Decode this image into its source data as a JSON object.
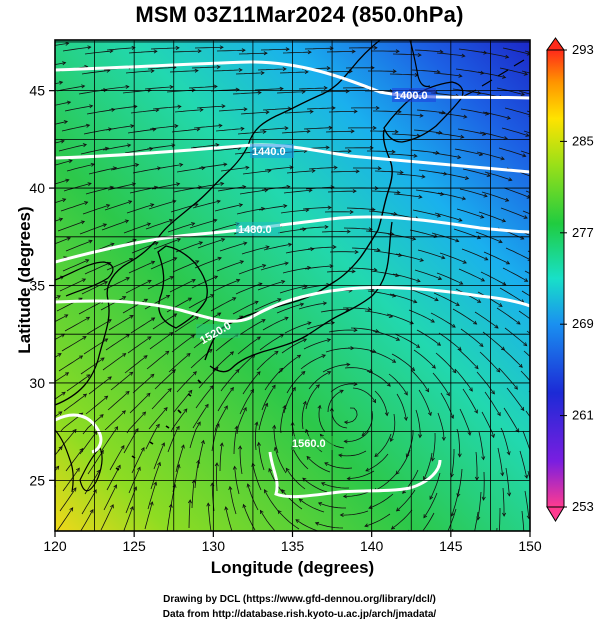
{
  "title": "MSM 03Z11Mar2024 (850.0hPa)",
  "axes": {
    "xlabel": "Longitude (degrees)",
    "ylabel": "Latitude  (degrees)",
    "x_ticks": [
      "120",
      "125",
      "130",
      "135",
      "140",
      "145",
      "150"
    ],
    "y_ticks": [
      "25",
      "30",
      "35",
      "40",
      "45"
    ],
    "xlim": [
      120,
      150
    ],
    "ylim": [
      22.4,
      47.6
    ]
  },
  "colorbar": {
    "ticks": [
      "293",
      "285",
      "277",
      "269",
      "261",
      "253"
    ],
    "range": [
      253,
      293
    ],
    "colors": [
      "#ff3b90",
      "#7a1ee0",
      "#1c2ad6",
      "#1a90f0",
      "#18e0c8",
      "#20cc40",
      "#9be018",
      "#ffe300",
      "#ff9400",
      "#ff2a1a"
    ]
  },
  "contour_labels": [
    "1400.0",
    "1440.0",
    "1480.0",
    "1520.0",
    "1560.0"
  ],
  "credits": {
    "line1": "Drawing by DCL (https://www.gfd-dennou.org/library/dcl/)",
    "line2": "Data from http://database.rish.kyoto-u.ac.jp/arch/jmadata/"
  },
  "chart_data": {
    "type": "heatmap",
    "title": "MSM 03Z11Mar2024 (850.0hPa)",
    "xlabel": "Longitude (degrees)",
    "ylabel": "Latitude  (degrees)",
    "xlim": [
      120,
      150
    ],
    "ylim": [
      22.4,
      47.6
    ],
    "colorbar_range": [
      253,
      293
    ],
    "grid": true,
    "contours": [
      {
        "label": "1400.0",
        "lon": 143.5,
        "lat": 45.3
      },
      {
        "label": "1440.0",
        "lon": 138.0,
        "lat": 42.6
      },
      {
        "label": "1480.0",
        "lon": 134.0,
        "lat": 39.5
      },
      {
        "label": "1520.0",
        "lon": 129.8,
        "lat": 33.8
      },
      {
        "label": "1560.0",
        "lon": 134.5,
        "lat": 27.0
      }
    ],
    "temperature_samples": [
      {
        "lon": 148,
        "lat": 46,
        "value": 262
      },
      {
        "lon": 140,
        "lat": 46,
        "value": 266
      },
      {
        "lon": 125,
        "lat": 46,
        "value": 270
      },
      {
        "lon": 130,
        "lat": 40,
        "value": 273
      },
      {
        "lon": 145,
        "lat": 40,
        "value": 268
      },
      {
        "lon": 122,
        "lat": 35,
        "value": 276
      },
      {
        "lon": 140,
        "lat": 35,
        "value": 272
      },
      {
        "lon": 135,
        "lat": 30,
        "value": 275
      },
      {
        "lon": 145,
        "lat": 30,
        "value": 276
      },
      {
        "lon": 125,
        "lat": 27,
        "value": 279
      },
      {
        "lon": 140,
        "lat": 25,
        "value": 280
      },
      {
        "lon": 121,
        "lat": 23,
        "value": 284
      }
    ]
  }
}
